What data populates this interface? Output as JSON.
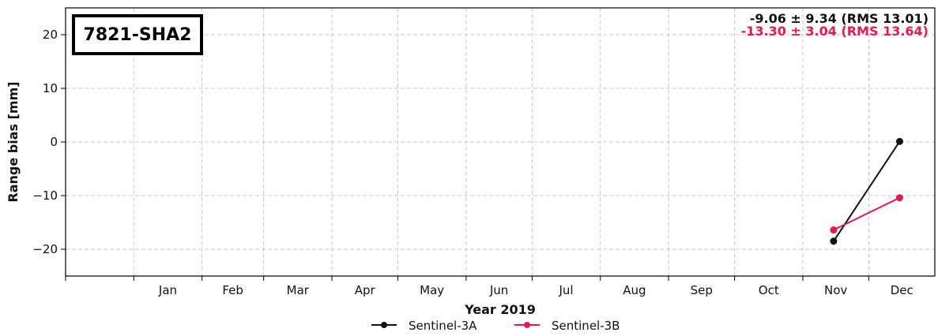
{
  "chart_data": {
    "type": "line",
    "station_label": "7821-SHA2",
    "xlabel": "Year 2019",
    "ylabel": "Range bias [mm]",
    "x_tick_labels": [
      "Jan",
      "Feb",
      "Mar",
      "Apr",
      "May",
      "Jun",
      "Jul",
      "Aug",
      "Sep",
      "Oct",
      "Nov",
      "Dec"
    ],
    "xlim": [
      "2018-12-01",
      "2019-12-31"
    ],
    "ylim": [
      -25,
      25
    ],
    "yticks": [
      -20,
      -10,
      0,
      10,
      20
    ],
    "y_tick_labels": [
      "−20",
      "−10",
      "0",
      "10",
      "20"
    ],
    "grid": true,
    "legend_position": "bottom-center",
    "series": [
      {
        "name": "Sentinel-3A",
        "color": "#111111",
        "x": [
          "2019-11-15",
          "2019-12-15"
        ],
        "y": [
          -18.5,
          0.1
        ],
        "stats": "-9.06 ± 9.34 (RMS 13.01)"
      },
      {
        "name": "Sentinel-3B",
        "color": "#e8174f",
        "x": [
          "2019-11-15",
          "2019-12-15"
        ],
        "y": [
          -16.4,
          -10.4
        ],
        "stats": "-13.30 ± 3.04 (RMS 13.64)"
      }
    ]
  }
}
